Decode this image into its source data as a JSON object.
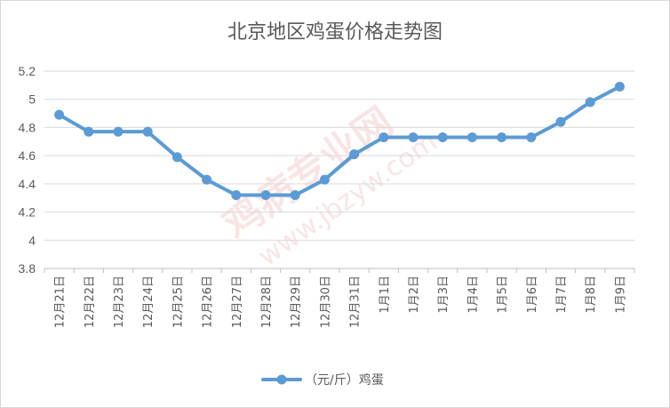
{
  "chart_data": {
    "type": "line",
    "title": "北京地区鸡蛋价格走势图",
    "categories": [
      "12月21日",
      "12月22日",
      "12月23日",
      "12月24日",
      "12月25日",
      "12月26日",
      "12月27日",
      "12月28日",
      "12月29日",
      "12月30日",
      "12月31日",
      "1月1日",
      "1月2日",
      "1月3日",
      "1月4日",
      "1月5日",
      "1月6日",
      "1月7日",
      "1月8日",
      "1月9日"
    ],
    "series": [
      {
        "name": "（元/斤）鸡蛋",
        "values": [
          4.89,
          4.77,
          4.77,
          4.77,
          4.59,
          4.43,
          4.32,
          4.32,
          4.32,
          4.43,
          4.61,
          4.73,
          4.73,
          4.73,
          4.73,
          4.73,
          4.73,
          4.84,
          4.98,
          5.09
        ],
        "color": "#5b9bd5"
      }
    ],
    "ylim": [
      3.8,
      5.2
    ],
    "yticks": [
      "3.8",
      "4",
      "4.2",
      "4.4",
      "4.6",
      "4.8",
      "5",
      "5.2"
    ],
    "grid": true,
    "legend": "bottom"
  },
  "watermark": {
    "main": "鸡病专业网",
    "url": "www.jbzyw.com"
  }
}
